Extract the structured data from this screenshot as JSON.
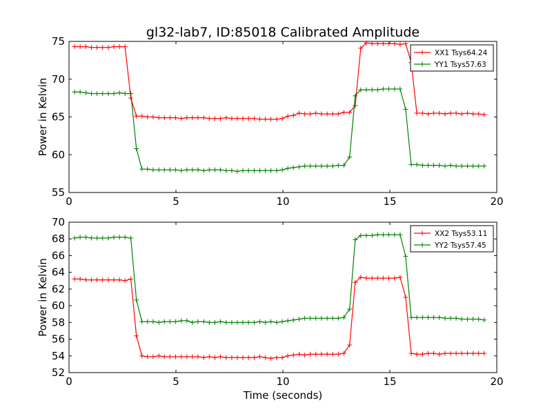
{
  "title": "gl32-lab7, ID:85018 Calibrated Amplitude",
  "chart_data": [
    {
      "type": "line",
      "xlabel": "",
      "ylabel": "Power in Kelvin",
      "xlim": [
        0,
        20
      ],
      "ylim": [
        55,
        75
      ],
      "xticks": [
        0,
        5,
        10,
        15,
        20
      ],
      "yticks": [
        55,
        60,
        65,
        70,
        75
      ],
      "grid": false,
      "legend_position": "top-right",
      "x": [
        0.26,
        0.52,
        0.79,
        1.05,
        1.31,
        1.57,
        1.84,
        2.1,
        2.36,
        2.62,
        2.89,
        3.15,
        3.41,
        3.67,
        3.93,
        4.2,
        4.46,
        4.72,
        4.98,
        5.25,
        5.51,
        5.77,
        6.03,
        6.3,
        6.56,
        6.82,
        7.08,
        7.35,
        7.61,
        7.87,
        8.13,
        8.39,
        8.66,
        8.92,
        9.18,
        9.44,
        9.71,
        9.97,
        10.23,
        10.49,
        10.76,
        11.02,
        11.28,
        11.54,
        11.8,
        12.07,
        12.33,
        12.59,
        12.85,
        13.12,
        13.38,
        13.64,
        13.9,
        14.17,
        14.43,
        14.69,
        14.95,
        15.22,
        15.48,
        15.74,
        16.0,
        16.26,
        16.53,
        16.79,
        17.05,
        17.31,
        17.58,
        17.84,
        18.1,
        18.36,
        18.63,
        18.89,
        19.15,
        19.41
      ],
      "series": [
        {
          "name": "XX1 Tsys64.24",
          "color": "#ff0000",
          "values": [
            74.3,
            74.3,
            74.3,
            74.2,
            74.2,
            74.2,
            74.2,
            74.3,
            74.3,
            74.3,
            67.5,
            65.1,
            65.1,
            65.0,
            65.0,
            64.9,
            64.9,
            64.9,
            64.9,
            64.8,
            64.9,
            64.9,
            64.9,
            64.9,
            64.8,
            64.8,
            64.8,
            64.9,
            64.8,
            64.8,
            64.8,
            64.8,
            64.8,
            64.7,
            64.7,
            64.7,
            64.7,
            64.8,
            65.1,
            65.2,
            65.5,
            65.4,
            65.4,
            65.5,
            65.4,
            65.4,
            65.4,
            65.4,
            65.6,
            65.6,
            66.5,
            74.1,
            74.8,
            74.7,
            74.7,
            74.7,
            74.7,
            74.7,
            74.6,
            74.7,
            72.2,
            65.5,
            65.5,
            65.4,
            65.5,
            65.5,
            65.4,
            65.5,
            65.5,
            65.4,
            65.5,
            65.4,
            65.4,
            65.3
          ]
        },
        {
          "name": "YY1 Tsys57.63",
          "color": "#008000",
          "values": [
            68.3,
            68.3,
            68.2,
            68.1,
            68.1,
            68.1,
            68.1,
            68.1,
            68.2,
            68.1,
            68.1,
            60.8,
            58.1,
            58.1,
            58.0,
            58.0,
            58.0,
            58.0,
            58.0,
            57.9,
            58.0,
            58.0,
            58.0,
            57.9,
            58.0,
            58.0,
            58.0,
            57.9,
            57.9,
            57.8,
            57.9,
            57.9,
            57.9,
            57.9,
            57.9,
            57.9,
            57.9,
            58.0,
            58.2,
            58.3,
            58.4,
            58.5,
            58.5,
            58.5,
            58.5,
            58.5,
            58.5,
            58.6,
            58.6,
            59.7,
            67.8,
            68.6,
            68.6,
            68.6,
            68.6,
            68.7,
            68.7,
            68.7,
            68.7,
            66.0,
            58.7,
            58.7,
            58.6,
            58.6,
            58.6,
            58.6,
            58.5,
            58.6,
            58.5,
            58.5,
            58.5,
            58.5,
            58.5,
            58.5
          ]
        }
      ]
    },
    {
      "type": "line",
      "xlabel": "Time (seconds)",
      "ylabel": "Power in Kelvin",
      "xlim": [
        0,
        20
      ],
      "ylim": [
        52,
        70
      ],
      "xticks": [
        0,
        5,
        10,
        15,
        20
      ],
      "yticks": [
        52,
        54,
        56,
        58,
        60,
        62,
        64,
        66,
        68,
        70
      ],
      "grid": false,
      "legend_position": "top-right",
      "x": [
        0.26,
        0.52,
        0.79,
        1.05,
        1.31,
        1.57,
        1.84,
        2.1,
        2.36,
        2.62,
        2.89,
        3.15,
        3.41,
        3.67,
        3.93,
        4.2,
        4.46,
        4.72,
        4.98,
        5.25,
        5.51,
        5.77,
        6.03,
        6.3,
        6.56,
        6.82,
        7.08,
        7.35,
        7.61,
        7.87,
        8.13,
        8.39,
        8.66,
        8.92,
        9.18,
        9.44,
        9.71,
        9.97,
        10.23,
        10.49,
        10.76,
        11.02,
        11.28,
        11.54,
        11.8,
        12.07,
        12.33,
        12.59,
        12.85,
        13.12,
        13.38,
        13.64,
        13.9,
        14.17,
        14.43,
        14.69,
        14.95,
        15.22,
        15.48,
        15.74,
        16.0,
        16.26,
        16.53,
        16.79,
        17.05,
        17.31,
        17.58,
        17.84,
        18.1,
        18.36,
        18.63,
        18.89,
        19.15,
        19.41
      ],
      "series": [
        {
          "name": "XX2 Tsys53.11",
          "color": "#ff0000",
          "values": [
            63.2,
            63.2,
            63.1,
            63.1,
            63.1,
            63.1,
            63.1,
            63.1,
            63.1,
            63.0,
            63.2,
            56.4,
            54.0,
            53.9,
            53.9,
            54.0,
            53.9,
            53.9,
            53.9,
            53.9,
            53.9,
            53.9,
            53.9,
            53.8,
            53.9,
            53.8,
            53.9,
            53.8,
            53.8,
            53.8,
            53.8,
            53.8,
            53.8,
            53.9,
            53.8,
            53.7,
            53.8,
            53.8,
            54.0,
            54.1,
            54.2,
            54.1,
            54.2,
            54.2,
            54.2,
            54.2,
            54.2,
            54.2,
            54.3,
            55.3,
            62.8,
            63.4,
            63.3,
            63.3,
            63.3,
            63.3,
            63.3,
            63.3,
            63.4,
            61.0,
            54.3,
            54.2,
            54.2,
            54.3,
            54.3,
            54.2,
            54.3,
            54.3,
            54.3,
            54.3,
            54.3,
            54.3,
            54.3,
            54.3
          ]
        },
        {
          "name": "YY2 Tsys57.45",
          "color": "#008000",
          "values": [
            68.1,
            68.2,
            68.2,
            68.1,
            68.1,
            68.1,
            68.1,
            68.2,
            68.2,
            68.2,
            68.1,
            60.7,
            58.1,
            58.1,
            58.1,
            58.0,
            58.1,
            58.1,
            58.1,
            58.2,
            58.2,
            58.0,
            58.1,
            58.1,
            58.0,
            58.0,
            58.1,
            58.0,
            58.0,
            58.0,
            58.0,
            58.0,
            58.0,
            58.1,
            58.0,
            58.1,
            58.0,
            58.1,
            58.2,
            58.3,
            58.4,
            58.5,
            58.5,
            58.5,
            58.5,
            58.5,
            58.5,
            58.5,
            58.6,
            59.6,
            67.9,
            68.4,
            68.4,
            68.4,
            68.5,
            68.5,
            68.5,
            68.5,
            68.5,
            65.9,
            58.6,
            58.6,
            58.6,
            58.6,
            58.6,
            58.6,
            58.5,
            58.5,
            58.5,
            58.4,
            58.4,
            58.4,
            58.4,
            58.3
          ]
        }
      ]
    }
  ]
}
